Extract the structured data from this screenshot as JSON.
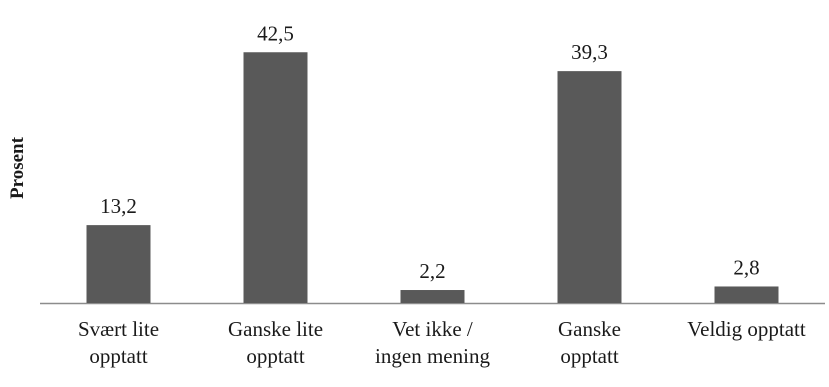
{
  "chart_data": {
    "type": "bar",
    "categories": [
      [
        "Svært lite",
        "opptatt"
      ],
      [
        "Ganske lite",
        "opptatt"
      ],
      [
        "Vet ikke /",
        "ingen mening"
      ],
      [
        "Ganske",
        "opptatt"
      ],
      [
        "Veldig opptatt"
      ]
    ],
    "values": [
      13.2,
      42.5,
      2.2,
      39.3,
      2.8
    ],
    "value_labels": [
      "13,2",
      "42,5",
      "2,2",
      "39,3",
      "2,8"
    ],
    "ylabel": "Prosent",
    "xlabel": "",
    "title": "",
    "ylim": [
      0,
      48
    ],
    "grid": false,
    "legend": "none",
    "colors": {
      "bar": "#595959",
      "axis": "#8c8c8c",
      "text": "#1a1a1a"
    }
  }
}
